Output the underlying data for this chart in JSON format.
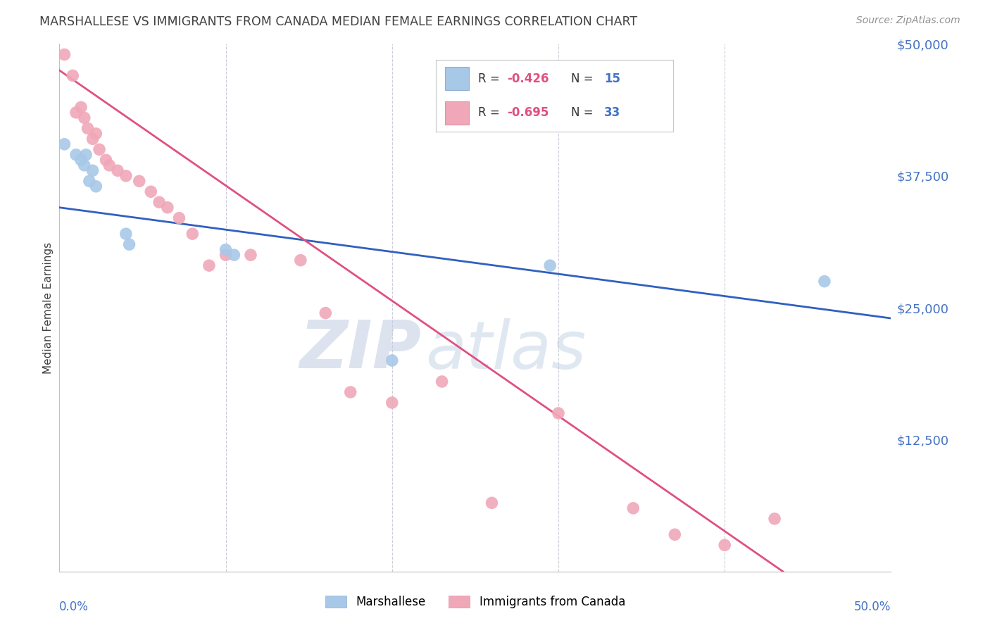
{
  "title": "MARSHALLESE VS IMMIGRANTS FROM CANADA MEDIAN FEMALE EARNINGS CORRELATION CHART",
  "source": "Source: ZipAtlas.com",
  "ylabel": "Median Female Earnings",
  "xlim": [
    0.0,
    0.5
  ],
  "ylim": [
    0,
    50000
  ],
  "watermark_zip": "ZIP",
  "watermark_atlas": "atlas",
  "yticks": [
    0,
    12500,
    25000,
    37500,
    50000
  ],
  "ytick_labels": [
    "",
    "$12,500",
    "$25,000",
    "$37,500",
    "$50,000"
  ],
  "blue_scatter_x": [
    0.003,
    0.01,
    0.013,
    0.015,
    0.016,
    0.018,
    0.02,
    0.022,
    0.04,
    0.042,
    0.1,
    0.105,
    0.2,
    0.295,
    0.46
  ],
  "blue_scatter_y": [
    40500,
    39500,
    39000,
    38500,
    39500,
    37000,
    38000,
    36500,
    32000,
    31000,
    30500,
    30000,
    20000,
    29000,
    27500
  ],
  "pink_scatter_x": [
    0.003,
    0.008,
    0.01,
    0.013,
    0.015,
    0.017,
    0.02,
    0.022,
    0.024,
    0.028,
    0.03,
    0.035,
    0.04,
    0.048,
    0.055,
    0.06,
    0.065,
    0.072,
    0.08,
    0.09,
    0.1,
    0.115,
    0.145,
    0.16,
    0.175,
    0.2,
    0.23,
    0.26,
    0.3,
    0.345,
    0.37,
    0.4,
    0.43
  ],
  "pink_scatter_y": [
    49000,
    47000,
    43500,
    44000,
    43000,
    42000,
    41000,
    41500,
    40000,
    39000,
    38500,
    38000,
    37500,
    37000,
    36000,
    35000,
    34500,
    33500,
    32000,
    29000,
    30000,
    30000,
    29500,
    24500,
    17000,
    16000,
    18000,
    6500,
    15000,
    6000,
    3500,
    2500,
    5000
  ],
  "blue_line_x0": 0.0,
  "blue_line_x1": 0.5,
  "blue_line_y0": 34500,
  "blue_line_y1": 24000,
  "pink_line_x0": 0.0,
  "pink_line_x1": 0.435,
  "pink_line_y0": 47500,
  "pink_line_y1": 0,
  "blue_line_color": "#3060c0",
  "pink_line_color": "#e05080",
  "blue_scatter_color": "#a8c8e8",
  "pink_scatter_color": "#f0a8b8",
  "grid_color": "#c8c8d8",
  "background_color": "#ffffff",
  "title_color": "#404040",
  "source_color": "#909090",
  "ylabel_color": "#404040",
  "ytick_color": "#4472c4",
  "xtick_color": "#4472c4",
  "legend_square_blue": "#a8c8e8",
  "legend_square_pink": "#f0a8b8",
  "legend_r_color": "#000000",
  "legend_val_color": "#e05080",
  "legend_n_color": "#000000",
  "legend_nval_color": "#4472c4",
  "watermark_zip_color": "#c0cce0",
  "watermark_atlas_color": "#b8cce0"
}
